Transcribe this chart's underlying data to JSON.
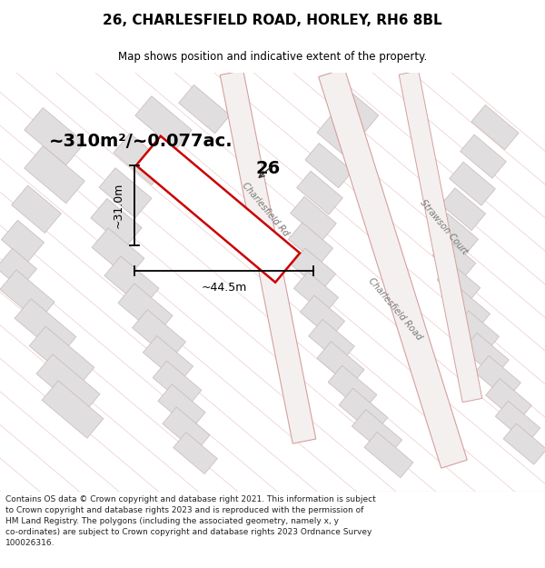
{
  "title": "26, CHARLESFIELD ROAD, HORLEY, RH6 8BL",
  "subtitle": "Map shows position and indicative extent of the property.",
  "area_text": "~310m²/~0.077ac.",
  "property_number": "26",
  "dim_width": "~44.5m",
  "dim_height": "~31.0m",
  "footer": "Contains OS data © Crown copyright and database right 2021. This information is subject to Crown copyright and database rights 2023 and is reproduced with the permission of HM Land Registry. The polygons (including the associated geometry, namely x, y co-ordinates) are subject to Crown copyright and database rights 2023 Ordnance Survey 100026316.",
  "bg_color": "#ffffff",
  "map_bg": "#fafafa",
  "line_color": "#e8b8b8",
  "parcel_fill": "#e0dede",
  "parcel_edge": "#c8b8b8",
  "road_fill": "#ffffff",
  "road_edge": "#d4a0a0",
  "plot_outline_color": "#cc0000",
  "footer_color": "#222222",
  "title_color": "#000000",
  "road_label_color": "#777777",
  "dim_color": "#000000"
}
